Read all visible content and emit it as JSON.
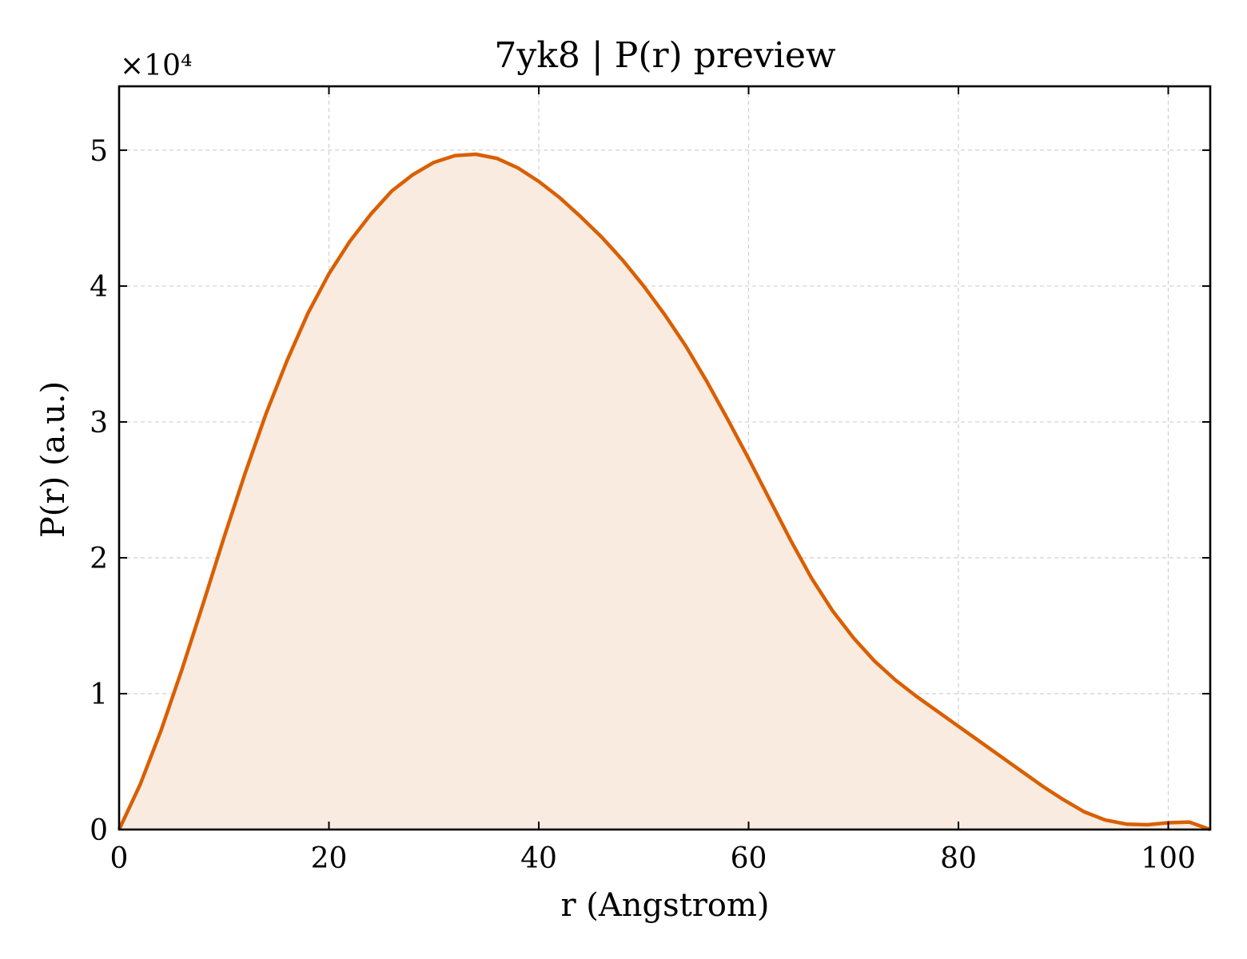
{
  "chart_data": {
    "type": "area",
    "title": "7yk8 | P(r) preview",
    "xlabel": "r (Angstrom)",
    "ylabel": "P(r) (a.u.)",
    "y_multiplier_label": "×10⁴",
    "xlim": [
      0,
      104
    ],
    "ylim": [
      0,
      5.47
    ],
    "xticks": [
      0,
      20,
      40,
      60,
      80,
      100
    ],
    "yticks": [
      0,
      1,
      2,
      3,
      4,
      5
    ],
    "grid": true,
    "line_color": "#d95f02",
    "fill_color": "#f9ebe0",
    "series": [
      {
        "x": [
          0,
          2,
          4,
          6,
          8,
          10,
          12,
          14,
          16,
          18,
          20,
          22,
          24,
          26,
          28,
          30,
          32,
          34,
          36,
          38,
          40,
          42,
          44,
          46,
          48,
          50,
          52,
          54,
          56,
          58,
          60,
          62,
          64,
          66,
          68,
          70,
          72,
          74,
          76,
          78,
          80,
          82,
          84,
          86,
          88,
          90,
          92,
          94,
          96,
          98,
          100,
          102,
          104
        ],
        "y": [
          0,
          0.33,
          0.73,
          1.18,
          1.66,
          2.15,
          2.62,
          3.06,
          3.45,
          3.8,
          4.09,
          4.33,
          4.53,
          4.7,
          4.82,
          4.91,
          4.96,
          4.97,
          4.94,
          4.87,
          4.77,
          4.65,
          4.51,
          4.36,
          4.19,
          4.0,
          3.79,
          3.56,
          3.3,
          3.02,
          2.73,
          2.43,
          2.13,
          1.85,
          1.61,
          1.41,
          1.24,
          1.1,
          0.98,
          0.87,
          0.76,
          0.65,
          0.54,
          0.43,
          0.32,
          0.22,
          0.13,
          0.07,
          0.04,
          0.035,
          0.05,
          0.055,
          0.0
        ]
      }
    ]
  }
}
